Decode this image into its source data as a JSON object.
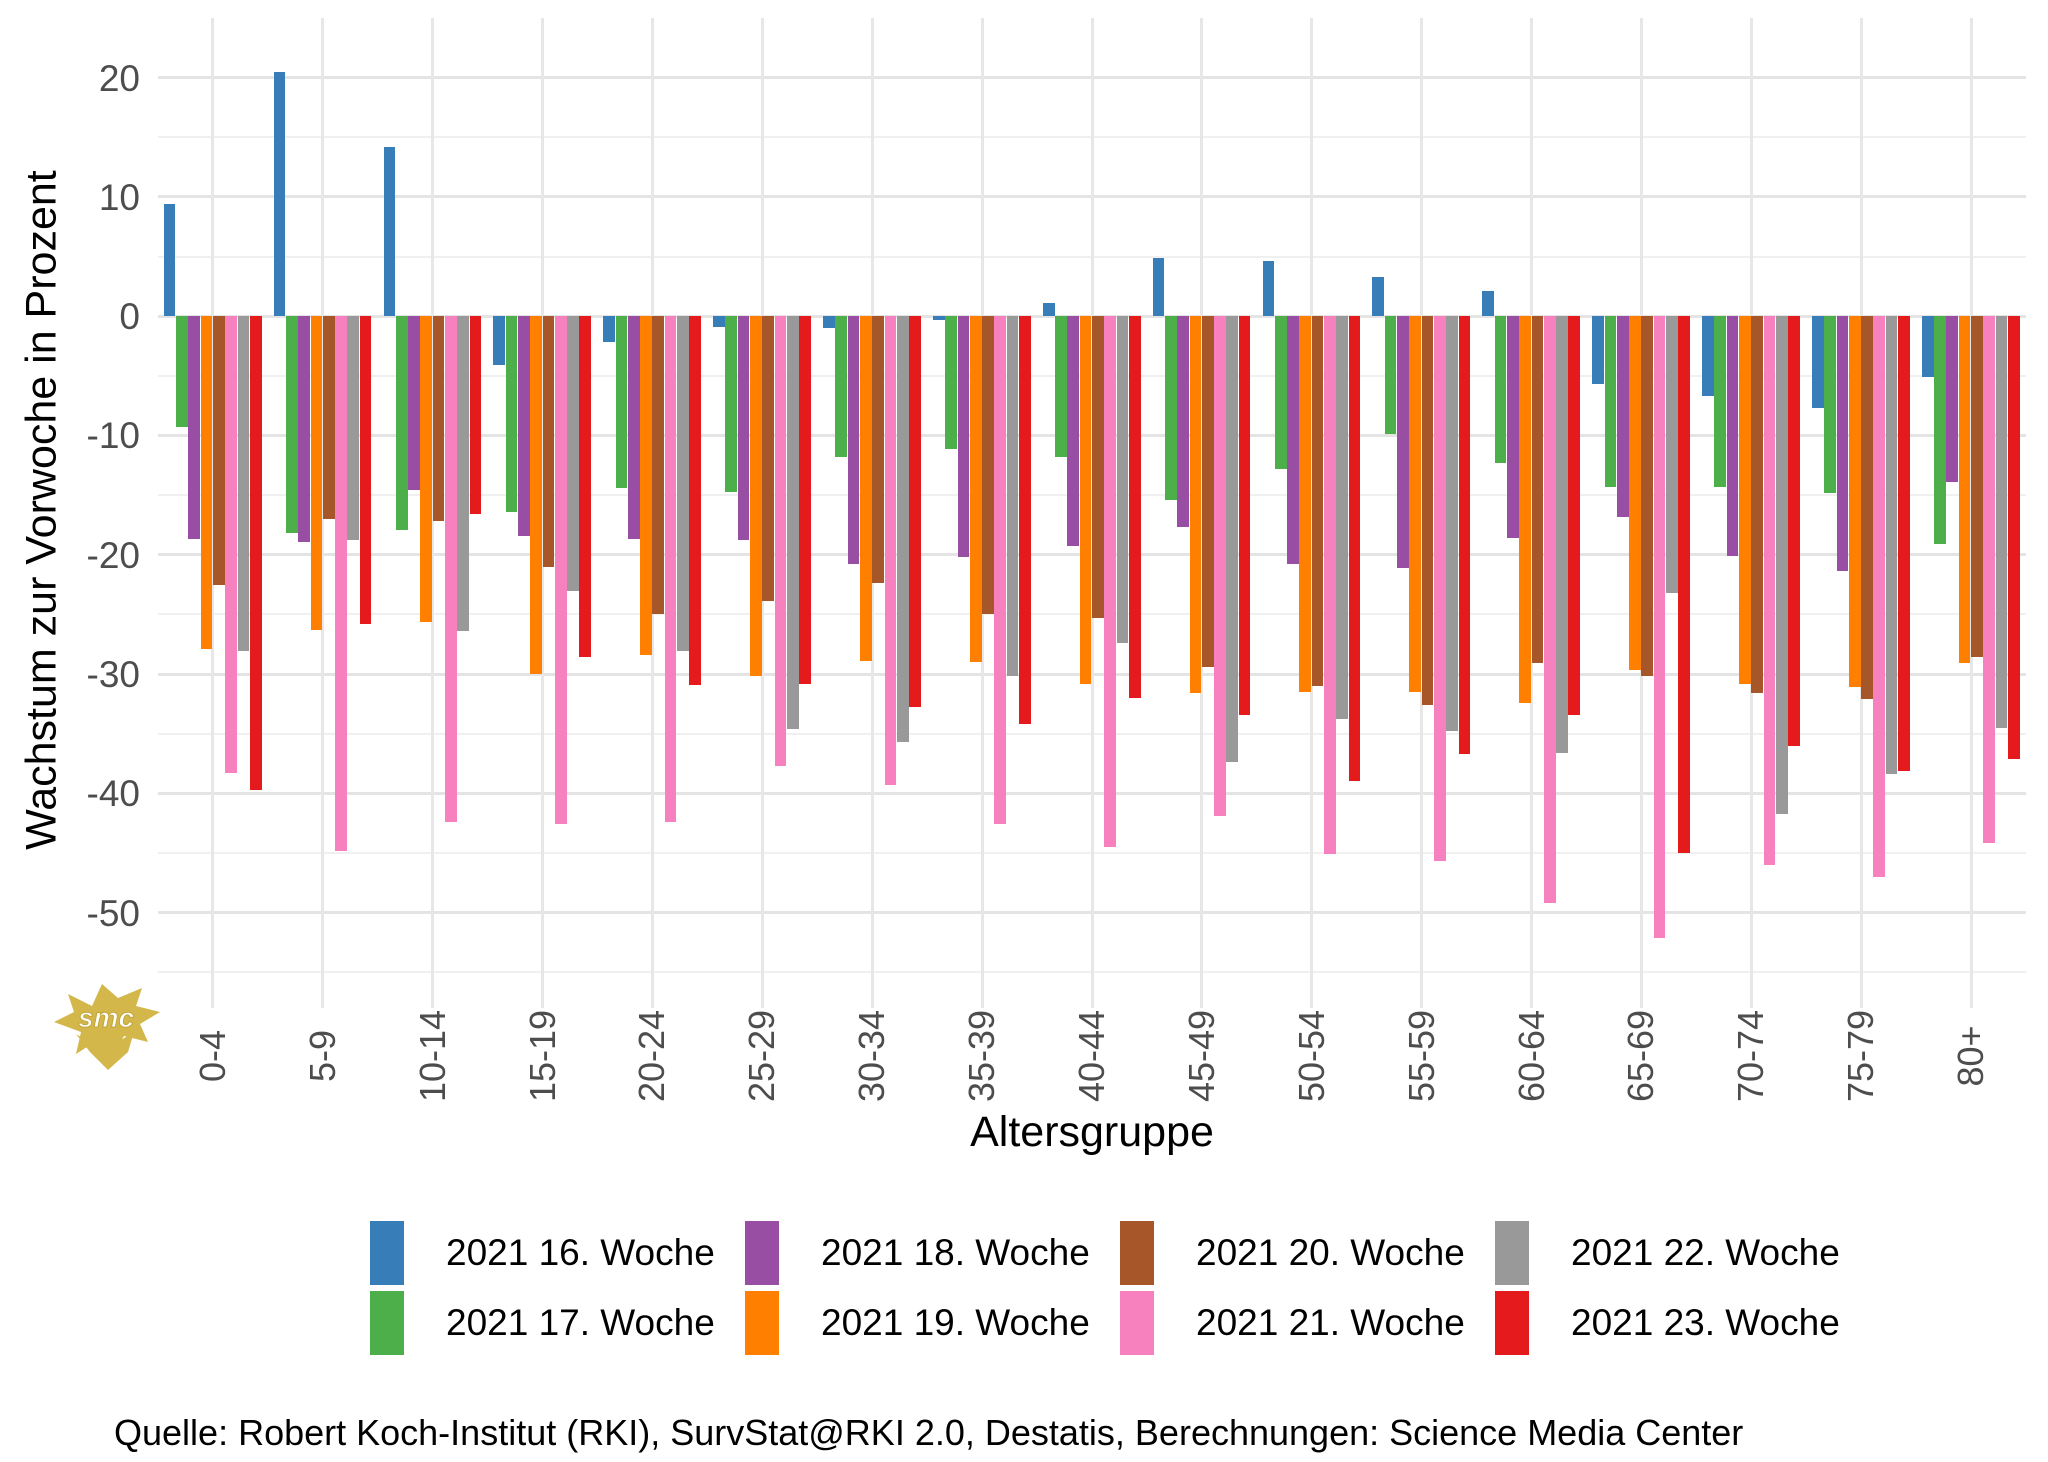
{
  "y_axis": {
    "title": "Wachstum zur Vorwoche in Prozent",
    "tick_labels": [
      "20",
      "10",
      "0",
      "-10",
      "-20",
      "-30",
      "-40",
      "-50"
    ]
  },
  "x_axis": {
    "title": "Altersgruppe"
  },
  "source": "Quelle: Robert Koch-Institut (RKI), SurvStat@RKI 2.0, Destatis, Berechnungen: Science Media Center",
  "logo": {
    "text": "smc",
    "color": "#d3b74b"
  },
  "chart_data": {
    "type": "bar",
    "title": "",
    "xlabel": "Altersgruppe",
    "ylabel": "Wachstum zur Vorwoche in Prozent",
    "ylim": [
      -58,
      25
    ],
    "yticks_major": [
      20,
      10,
      0,
      -10,
      -20,
      -30,
      -40,
      -50
    ],
    "yticks_minor": [
      15,
      5,
      -5,
      -15,
      -25,
      -35,
      -45,
      -55
    ],
    "grid": true,
    "legend_position": "bottom",
    "categories": [
      "0-4",
      "5-9",
      "10-14",
      "15-19",
      "20-24",
      "25-29",
      "30-34",
      "35-39",
      "40-44",
      "45-49",
      "50-54",
      "55-59",
      "60-64",
      "65-69",
      "70-74",
      "75-79",
      "80+"
    ],
    "series": [
      {
        "name": "2021 16. Woche",
        "color": "#377eb8",
        "values": [
          9.4,
          20.5,
          14.2,
          -4.1,
          -2.2,
          -0.9,
          -1.0,
          -0.3,
          1.1,
          4.9,
          4.6,
          3.3,
          2.1,
          -5.7,
          -6.7,
          -7.7,
          -5.1
        ]
      },
      {
        "name": "2021 17. Woche",
        "color": "#4daf4a",
        "values": [
          -9.3,
          -18.2,
          -17.9,
          -16.4,
          -14.4,
          -14.7,
          -11.8,
          -11.1,
          -11.8,
          -15.4,
          -12.8,
          -9.9,
          -12.3,
          -14.3,
          -14.3,
          -14.8,
          -19.1
        ]
      },
      {
        "name": "2021 18. Woche",
        "color": "#984ea3",
        "values": [
          -18.7,
          -18.9,
          -14.6,
          -18.4,
          -18.7,
          -18.8,
          -20.8,
          -20.2,
          -19.3,
          -17.7,
          -20.8,
          -21.1,
          -18.6,
          -16.8,
          -20.1,
          -21.4,
          -13.9
        ]
      },
      {
        "name": "2021 19. Woche",
        "color": "#ff7f00",
        "values": [
          -27.9,
          -26.3,
          -25.6,
          -30.0,
          -28.4,
          -30.2,
          -28.9,
          -29.0,
          -30.8,
          -31.6,
          -31.5,
          -31.5,
          -32.4,
          -29.7,
          -30.8,
          -31.1,
          -29.1
        ]
      },
      {
        "name": "2021 20. Woche",
        "color": "#a65628",
        "values": [
          -22.5,
          -17.0,
          -17.2,
          -21.0,
          -25.0,
          -23.9,
          -22.4,
          -25.0,
          -25.3,
          -29.4,
          -31.0,
          -32.6,
          -29.1,
          -30.2,
          -31.6,
          -32.1,
          -28.6
        ]
      },
      {
        "name": "2021 21. Woche",
        "color": "#f781bf",
        "values": [
          -38.3,
          -44.8,
          -42.4,
          -42.6,
          -42.4,
          -37.7,
          -39.3,
          -42.6,
          -44.5,
          -41.9,
          -45.1,
          -45.7,
          -49.2,
          -52.1,
          -46.0,
          -47.0,
          -44.2
        ]
      },
      {
        "name": "2021 22. Woche",
        "color": "#999999",
        "values": [
          -28.1,
          -18.8,
          -26.4,
          -23.0,
          -28.1,
          -34.6,
          -35.7,
          -30.2,
          -27.4,
          -37.4,
          -33.8,
          -34.8,
          -36.6,
          -23.2,
          -41.7,
          -38.4,
          -34.5
        ]
      },
      {
        "name": "2021 23. Woche",
        "color": "#e41a1c",
        "values": [
          -39.7,
          -25.8,
          -16.6,
          -28.6,
          -30.9,
          -30.8,
          -32.8,
          -34.2,
          -32.0,
          -33.4,
          -39.0,
          -36.7,
          -33.4,
          -45.0,
          -36.0,
          -38.1,
          -37.1
        ]
      }
    ]
  }
}
